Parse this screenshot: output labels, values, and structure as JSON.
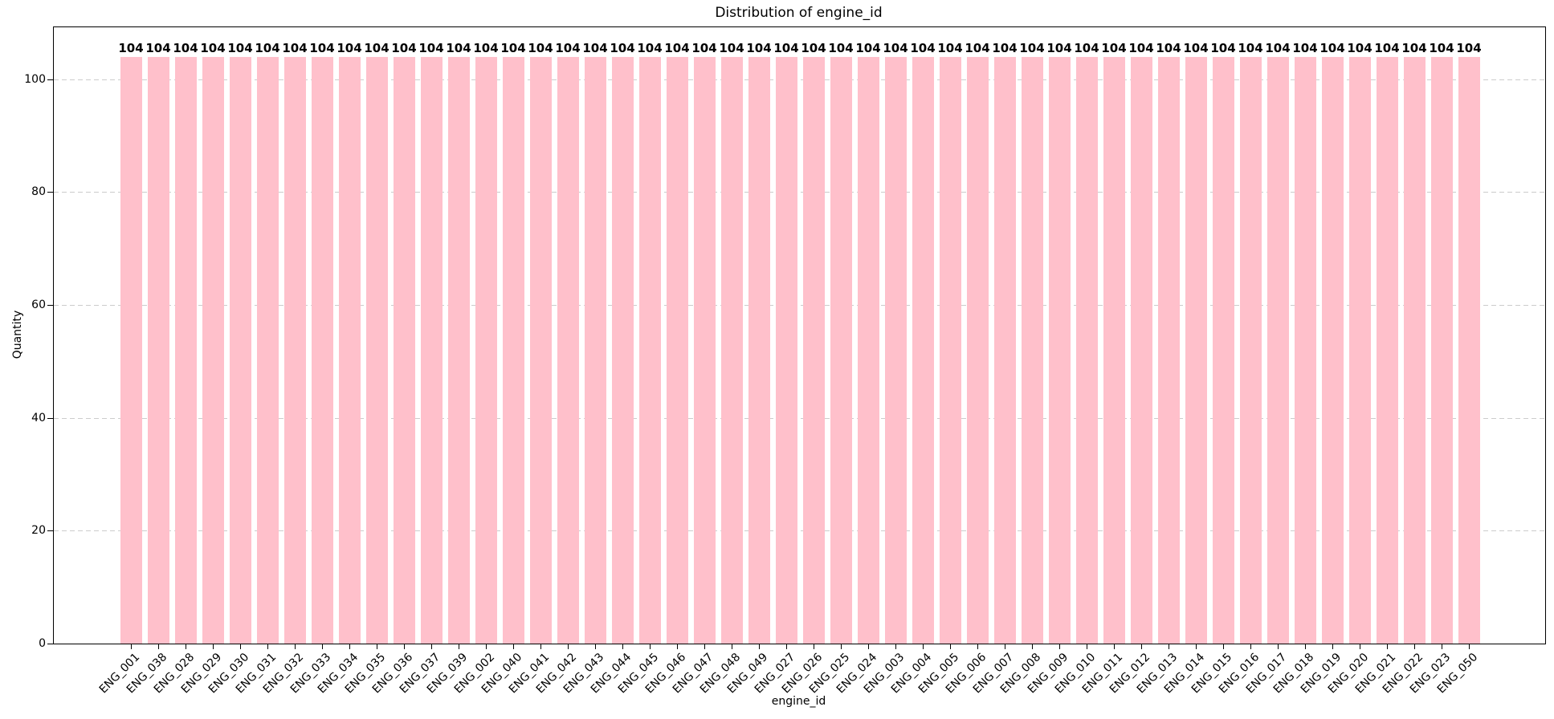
{
  "chart_data": {
    "type": "bar",
    "title": "Distribution of engine_id",
    "xlabel": "engine_id",
    "ylabel": "Quantity",
    "categories": [
      "ENG_001",
      "ENG_038",
      "ENG_028",
      "ENG_029",
      "ENG_030",
      "ENG_031",
      "ENG_032",
      "ENG_033",
      "ENG_034",
      "ENG_035",
      "ENG_036",
      "ENG_037",
      "ENG_039",
      "ENG_002",
      "ENG_040",
      "ENG_041",
      "ENG_042",
      "ENG_043",
      "ENG_044",
      "ENG_045",
      "ENG_046",
      "ENG_047",
      "ENG_048",
      "ENG_049",
      "ENG_027",
      "ENG_026",
      "ENG_025",
      "ENG_024",
      "ENG_003",
      "ENG_004",
      "ENG_005",
      "ENG_006",
      "ENG_007",
      "ENG_008",
      "ENG_009",
      "ENG_010",
      "ENG_011",
      "ENG_012",
      "ENG_013",
      "ENG_014",
      "ENG_015",
      "ENG_016",
      "ENG_017",
      "ENG_018",
      "ENG_019",
      "ENG_020",
      "ENG_021",
      "ENG_022",
      "ENG_023",
      "ENG_050"
    ],
    "values": [
      104,
      104,
      104,
      104,
      104,
      104,
      104,
      104,
      104,
      104,
      104,
      104,
      104,
      104,
      104,
      104,
      104,
      104,
      104,
      104,
      104,
      104,
      104,
      104,
      104,
      104,
      104,
      104,
      104,
      104,
      104,
      104,
      104,
      104,
      104,
      104,
      104,
      104,
      104,
      104,
      104,
      104,
      104,
      104,
      104,
      104,
      104,
      104,
      104,
      104
    ],
    "yticks": [
      0,
      20,
      40,
      60,
      80,
      100
    ],
    "ylim": [
      0,
      109.2
    ],
    "grid": {
      "axis": "y",
      "style": "dashed",
      "color": "#cccccc"
    },
    "bar_color": "#ffc0cb",
    "value_label_color": "#000000",
    "legend": "none"
  }
}
